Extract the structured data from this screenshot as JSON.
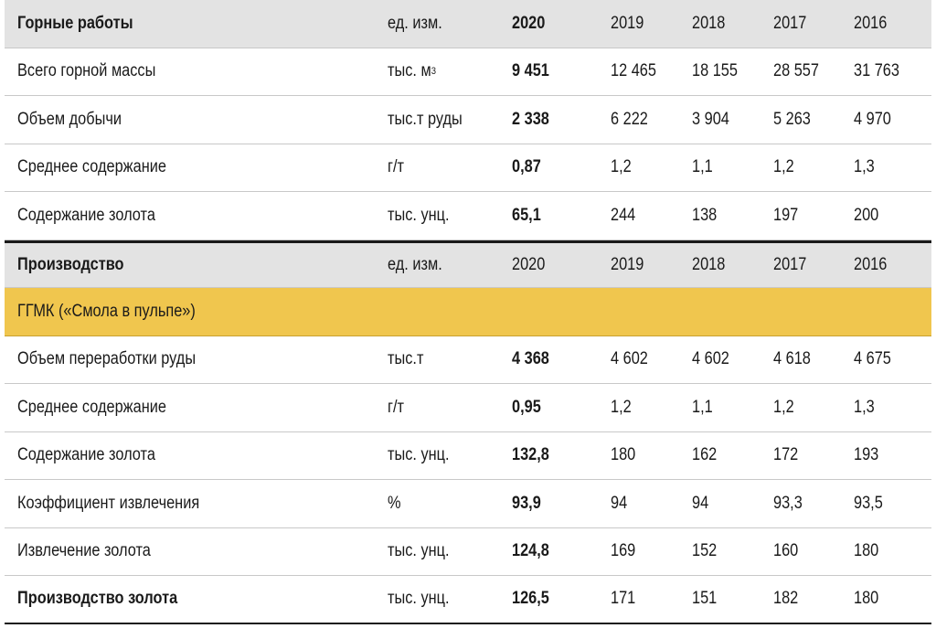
{
  "section1": {
    "title": "Горные работы",
    "unit_header": "ед. изм.",
    "years": [
      "2020",
      "2019",
      "2018",
      "2017",
      "2016"
    ]
  },
  "mining_rows": [
    {
      "label": "Всего горной массы",
      "unit": "тыс. м",
      "unit_sup": "3",
      "values": [
        "9 451",
        "12 465",
        "18 155",
        "28 557",
        "31 763"
      ]
    },
    {
      "label": "Объем добычи",
      "unit": "тыс.т руды",
      "values": [
        "2 338",
        "6 222",
        "3 904",
        "5 263",
        "4 970"
      ]
    },
    {
      "label": "Среднее содержание",
      "unit": "г/т",
      "values": [
        "0,87",
        "1,2",
        "1,1",
        "1,2",
        "1,3"
      ]
    },
    {
      "label": "Содержание золота",
      "unit": "тыс. унц.",
      "values": [
        "65,1",
        "244",
        "138",
        "197",
        "200"
      ]
    }
  ],
  "section2": {
    "title": "Производство",
    "unit_header": "ед. изм.",
    "years": [
      "2020",
      "2019",
      "2018",
      "2017",
      "2016"
    ]
  },
  "group": {
    "label": "ГГМК («Смола в пульпе»)"
  },
  "production_rows": [
    {
      "label": "Объем переработки руды",
      "unit": "тыс.т",
      "values": [
        "4 368",
        "4 602",
        "4 602",
        "4 618",
        "4 675"
      ]
    },
    {
      "label": "Среднее содержание",
      "unit": "г/т",
      "values": [
        "0,95",
        "1,2",
        "1,1",
        "1,2",
        "1,3"
      ]
    },
    {
      "label": "Содержание золота",
      "unit": "тыс. унц.",
      "values": [
        "132,8",
        "180",
        "162",
        "172",
        "193"
      ]
    },
    {
      "label": "Коэффициент извлечения",
      "unit": "%",
      "values": [
        "93,9",
        "94",
        "94",
        "93,3",
        "93,5"
      ]
    },
    {
      "label": "Извлечение золота",
      "unit": "тыс. унц.",
      "values": [
        "124,8",
        "169",
        "152",
        "160",
        "180"
      ]
    },
    {
      "label": "Производство золота",
      "unit": "тыс. унц.",
      "values": [
        "126,5",
        "171",
        "151",
        "182",
        "180"
      ]
    }
  ],
  "colors": {
    "header_bg": "#e3e3e3",
    "group_bg": "#f0c64e",
    "text": "#1a1a1a"
  }
}
